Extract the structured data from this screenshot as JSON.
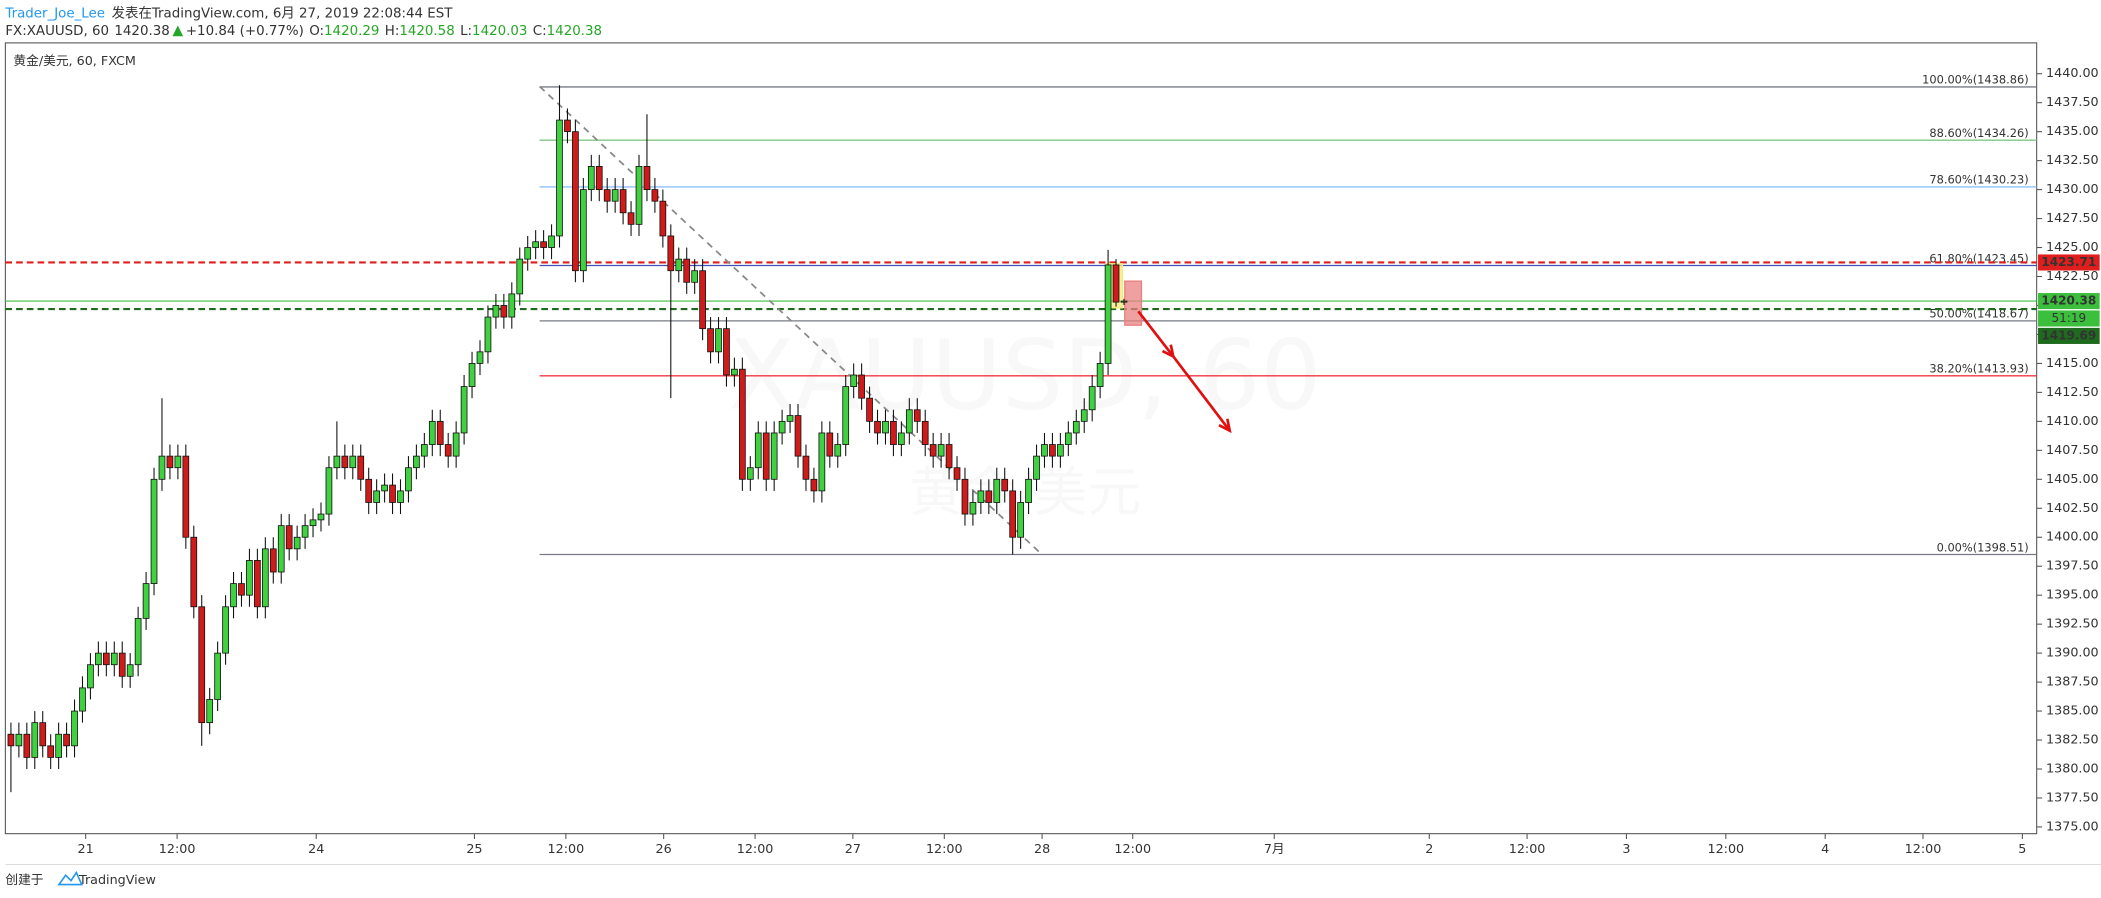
{
  "header": {
    "author": "Trader_Joe_Lee",
    "published": "发表在TradingView.com, 6月 27, 2019 22:08:44 EST",
    "symbol": "FX:XAUUSD, 60",
    "last": 1420.38,
    "change": "+10.84 (+0.77%)",
    "ohlc": [
      {
        "label": "O:",
        "value": 1420.29
      },
      {
        "label": "H:",
        "value": 1420.58
      },
      {
        "label": "L:",
        "value": 1420.03
      },
      {
        "label": "C:",
        "value": 1420.38
      }
    ]
  },
  "footer": {
    "created": "创建于",
    "brand": "TradingView"
  },
  "chart_data": {
    "type": "candlestick",
    "legend_text": "黄金/美元, 60, FXCM",
    "watermark": [
      "XAUUSD, 60",
      "黄金/美元"
    ],
    "up_color": "#3fd13f",
    "down_color": "#d01b1b",
    "grid": false,
    "open": [
      1383,
      1382,
      1383,
      1381,
      1384,
      1382,
      1381,
      1383,
      1382,
      1385,
      1387,
      1389,
      1390,
      1389,
      1390,
      1388,
      1389,
      1393,
      1396,
      1405,
      1407,
      1406,
      1407,
      1400,
      1394,
      1384,
      1386,
      1390,
      1394,
      1396,
      1395,
      1398,
      1394,
      1399,
      1397,
      1401,
      1399,
      1400,
      1401,
      1401.5,
      1402,
      1406,
      1407,
      1406,
      1407,
      1405,
      1403,
      1404,
      1404.5,
      1403,
      1404,
      1406,
      1407,
      1408,
      1410,
      1408,
      1407,
      1409,
      1413,
      1415,
      1416,
      1419,
      1420,
      1419,
      1421,
      1424,
      1425,
      1425.5,
      1425,
      1426,
      1436,
      1435,
      1423,
      1430,
      1432,
      1430,
      1429,
      1430,
      1428,
      1427,
      1432,
      1430,
      1429,
      1426,
      1423,
      1424,
      1422,
      1423,
      1418,
      1416,
      1418,
      1414,
      1414.5,
      1405,
      1406,
      1409,
      1405,
      1409,
      1410,
      1410.5,
      1407,
      1405,
      1404,
      1409,
      1407,
      1408,
      1413,
      1414,
      1412,
      1410,
      1409,
      1410,
      1408,
      1409,
      1411,
      1410,
      1408,
      1407,
      1408,
      1406,
      1405,
      1402,
      1403,
      1404,
      1403,
      1405,
      1404,
      1400,
      1403,
      1405,
      1407,
      1408,
      1407,
      1408,
      1409,
      1410,
      1411,
      1413,
      1415,
      1423.5,
      1420.29
    ],
    "high": [
      1384,
      1384,
      1384,
      1385,
      1385,
      1383,
      1384,
      1384,
      1386,
      1388,
      1390,
      1391,
      1391,
      1391,
      1391,
      1390,
      1394,
      1397,
      1406,
      1412,
      1408,
      1408,
      1408,
      1401,
      1395,
      1387,
      1391,
      1395,
      1397,
      1397,
      1399,
      1399,
      1400,
      1400,
      1402,
      1402,
      1401,
      1402,
      1402.5,
      1403,
      1407,
      1410,
      1408,
      1408,
      1408,
      1406,
      1405,
      1405.5,
      1405.5,
      1405,
      1407,
      1408,
      1409,
      1411,
      1411,
      1409,
      1410,
      1414,
      1416,
      1417,
      1420,
      1421,
      1421,
      1422,
      1425,
      1426,
      1426.5,
      1426.5,
      1427,
      1439,
      1437,
      1436,
      1431,
      1433,
      1433,
      1431,
      1431,
      1431,
      1429,
      1433,
      1436.5,
      1431,
      1430,
      1427,
      1425,
      1425,
      1424,
      1424,
      1419,
      1419,
      1419,
      1415.5,
      1415.5,
      1407,
      1410,
      1410,
      1410,
      1411,
      1411.5,
      1411.5,
      1408,
      1406,
      1410,
      1410,
      1409,
      1414,
      1415,
      1415,
      1413,
      1411,
      1411,
      1411,
      1410,
      1412,
      1412,
      1411,
      1409,
      1409,
      1409,
      1407,
      1406,
      1404,
      1405,
      1405,
      1406,
      1406,
      1405,
      1404,
      1406,
      1408,
      1409,
      1409,
      1409,
      1410,
      1411,
      1412,
      1414,
      1416,
      1424.8,
      1424,
      1420.58
    ],
    "low": [
      1378,
      1381,
      1380,
      1380,
      1381,
      1380,
      1380,
      1381,
      1381,
      1384,
      1386,
      1388,
      1388,
      1388,
      1387,
      1387,
      1388,
      1392,
      1395,
      1404,
      1405,
      1405,
      1399,
      1393,
      1382,
      1383,
      1385,
      1389,
      1393,
      1394,
      1394,
      1393,
      1393,
      1396,
      1396,
      1398,
      1398,
      1399,
      1400,
      1400.5,
      1401,
      1405,
      1405,
      1405,
      1404,
      1402,
      1402,
      1403,
      1402,
      1402,
      1403,
      1405,
      1406,
      1407,
      1407,
      1406,
      1406,
      1408,
      1412,
      1414,
      1415,
      1418,
      1418,
      1418,
      1420,
      1423,
      1424,
      1424,
      1424,
      1425,
      1434,
      1422,
      1422,
      1429,
      1429,
      1428,
      1428,
      1427,
      1426,
      1426,
      1429,
      1428,
      1425,
      1412,
      1422,
      1421,
      1421,
      1417,
      1415,
      1415,
      1413,
      1413,
      1404,
      1404,
      1405,
      1404,
      1404,
      1408,
      1409,
      1406,
      1404,
      1403,
      1403,
      1406,
      1406,
      1407,
      1412,
      1411,
      1409,
      1408,
      1408,
      1407,
      1407,
      1408,
      1409,
      1407,
      1406,
      1406,
      1405,
      1404,
      1401,
      1401,
      1402,
      1402,
      1402,
      1403,
      1398.5,
      1399,
      1402,
      1404,
      1406,
      1406,
      1406,
      1407,
      1408,
      1409,
      1410,
      1412,
      1414,
      1419.9,
      1420.03
    ],
    "close": [
      1382,
      1383,
      1381,
      1384,
      1382,
      1381,
      1383,
      1382,
      1385,
      1387,
      1389,
      1390,
      1389,
      1390,
      1388,
      1389,
      1393,
      1396,
      1405,
      1407,
      1406,
      1407,
      1400,
      1394,
      1384,
      1386,
      1390,
      1394,
      1396,
      1395,
      1398,
      1394,
      1399,
      1397,
      1401,
      1399,
      1400,
      1401,
      1401.5,
      1402,
      1406,
      1407,
      1406,
      1407,
      1405,
      1403,
      1404,
      1404.5,
      1403,
      1404,
      1406,
      1407,
      1408,
      1410,
      1408,
      1407,
      1409,
      1413,
      1415,
      1416,
      1419,
      1420,
      1419,
      1421,
      1424,
      1425,
      1425.5,
      1425,
      1426,
      1436,
      1435,
      1423,
      1430,
      1432,
      1430,
      1429,
      1430,
      1428,
      1427,
      1432,
      1430,
      1429,
      1426,
      1423,
      1424,
      1422,
      1423,
      1418,
      1416,
      1418,
      1414,
      1414.5,
      1405,
      1406,
      1409,
      1405,
      1409,
      1410,
      1410.5,
      1407,
      1405,
      1404,
      1409,
      1407,
      1408,
      1413,
      1414,
      1412,
      1410,
      1409,
      1410,
      1408,
      1409,
      1411,
      1410,
      1408,
      1407,
      1408,
      1406,
      1405,
      1402,
      1403,
      1404,
      1403,
      1405,
      1404,
      1400,
      1403,
      1405,
      1407,
      1408,
      1407,
      1408,
      1409,
      1410,
      1411,
      1413,
      1415,
      1423.5,
      1420.29,
      1420.38
    ],
    "xlim": [
      -0.7,
      254.8
    ],
    "ylim": [
      1374.42,
      1442.66
    ],
    "xticks": [
      {
        "value": 9.4,
        "label": "21"
      },
      {
        "value": 20.9,
        "label": "12:00"
      },
      {
        "value": 38.4,
        "label": "24"
      },
      {
        "value": 58.3,
        "label": "25"
      },
      {
        "value": 69.8,
        "label": "12:00"
      },
      {
        "value": 82.1,
        "label": "26"
      },
      {
        "value": 93.6,
        "label": "12:00"
      },
      {
        "value": 105.9,
        "label": "27"
      },
      {
        "value": 117.4,
        "label": "12:00"
      },
      {
        "value": 129.7,
        "label": "28"
      },
      {
        "value": 141.1,
        "label": "12:00"
      },
      {
        "value": 158.9,
        "label": "7月"
      },
      {
        "value": 178.4,
        "label": "2"
      },
      {
        "value": 190.7,
        "label": "12:00"
      },
      {
        "value": 203.2,
        "label": "3"
      },
      {
        "value": 215.7,
        "label": "12:00"
      },
      {
        "value": 228.2,
        "label": "4"
      },
      {
        "value": 240.5,
        "label": "12:00"
      },
      {
        "value": 253,
        "label": "5"
      }
    ],
    "yticks": [
      {
        "value": 1375,
        "label": "1375.00"
      },
      {
        "value": 1377.5,
        "label": "1377.50"
      },
      {
        "value": 1380,
        "label": "1380.00"
      },
      {
        "value": 1382.5,
        "label": "1382.50"
      },
      {
        "value": 1385,
        "label": "1385.00"
      },
      {
        "value": 1387.5,
        "label": "1387.50"
      },
      {
        "value": 1390,
        "label": "1390.00"
      },
      {
        "value": 1392.5,
        "label": "1392.50"
      },
      {
        "value": 1395,
        "label": "1395.00"
      },
      {
        "value": 1397.5,
        "label": "1397.50"
      },
      {
        "value": 1400,
        "label": "1400.00"
      },
      {
        "value": 1402.5,
        "label": "1402.50"
      },
      {
        "value": 1405,
        "label": "1405.00"
      },
      {
        "value": 1407.5,
        "label": "1407.50"
      },
      {
        "value": 1410,
        "label": "1410.00"
      },
      {
        "value": 1412.5,
        "label": "1412.50"
      },
      {
        "value": 1415,
        "label": "1415.00"
      },
      {
        "value": 1417.5,
        "label": "1417.50"
      },
      {
        "value": 1420,
        "label": "1420.00"
      },
      {
        "value": 1422.5,
        "label": "1422.50"
      },
      {
        "value": 1425,
        "label": "1425.00"
      },
      {
        "value": 1427.5,
        "label": "1427.50"
      },
      {
        "value": 1430,
        "label": "1430.00"
      },
      {
        "value": 1432.5,
        "label": "1432.50"
      },
      {
        "value": 1435,
        "label": "1435.00"
      },
      {
        "value": 1437.5,
        "label": "1437.50"
      },
      {
        "value": 1440,
        "label": "1440.00"
      }
    ],
    "fib_start_x": 66.5,
    "fib_levels": [
      {
        "value": 1438.86,
        "label": "100.00%(1438.86)",
        "color": "#787b86"
      },
      {
        "value": 1434.26,
        "label": "88.60%(1434.26)",
        "color": "#81c784"
      },
      {
        "value": 1430.23,
        "label": "78.60%(1430.23)",
        "color": "#90bff9"
      },
      {
        "value": 1423.45,
        "label": "61.80%(1423.45)",
        "color": "#3f51b5"
      },
      {
        "value": 1418.67,
        "label": "50.00%(1418.67)",
        "color": "#787b86"
      },
      {
        "value": 1413.93,
        "label": "38.20%(1413.93)",
        "color": "#f23645"
      },
      {
        "value": 1398.51,
        "label": "0.00%(1398.51)",
        "color": "#787b86"
      }
    ],
    "trend_line": {
      "x": [
        66.5,
        129.7
      ],
      "y": [
        1438.9,
        1398.5
      ],
      "color": "#888888"
    },
    "arrow": {
      "x": [
        141.8,
        146.2,
        153.3
      ],
      "y": [
        1419.5,
        1415.6,
        1409.2
      ],
      "color": "#e01010"
    },
    "boxes": [
      {
        "x": [
          137.8,
          139.8
        ],
        "y": [
          1419.8,
          1423.6
        ],
        "color": "#f5e97a"
      },
      {
        "x": [
          140.1,
          142.2
        ],
        "y": [
          1418.3,
          1422.1
        ],
        "color": "#e98080"
      }
    ],
    "price_lines": [
      {
        "value": 1423.71,
        "color": "#e01e1e",
        "dashed": true
      },
      {
        "value": 1420.38,
        "color": "#3cbf3c",
        "dashed": false,
        "countdown": "51:19"
      },
      {
        "value": 1419.69,
        "color": "#1e6b1e",
        "dashed": true
      }
    ]
  }
}
